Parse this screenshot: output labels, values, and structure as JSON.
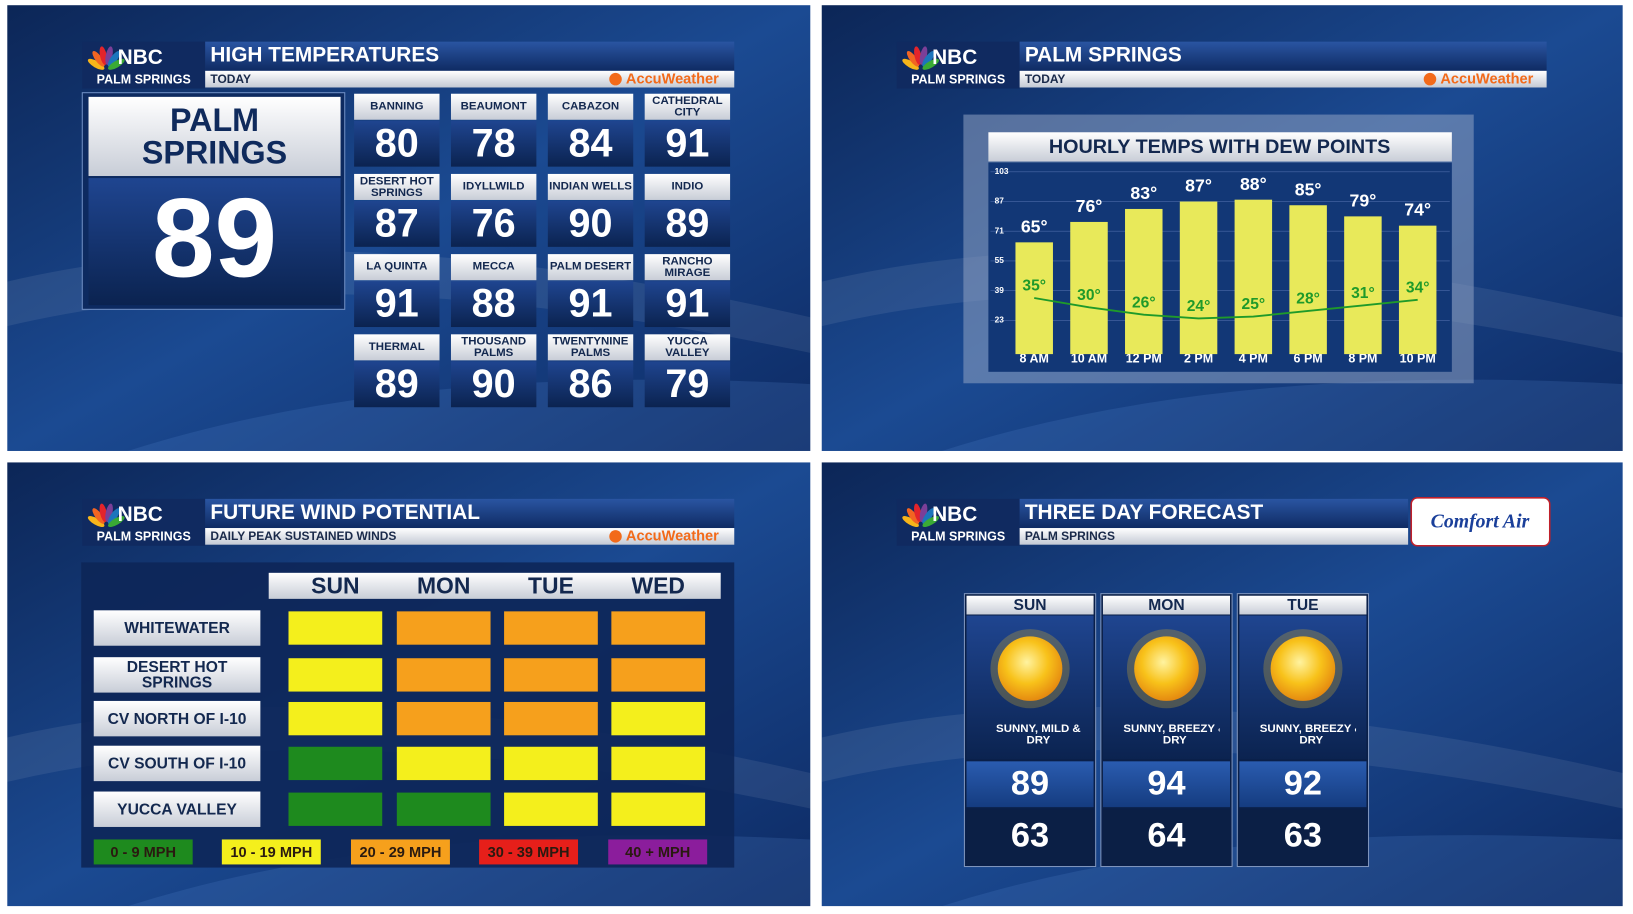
{
  "network": {
    "name": "NBC",
    "station": "PALM SPRINGS"
  },
  "panels": {
    "high_temps": {
      "title": "HIGH TEMPERATURES",
      "subtitle": "TODAY",
      "sponsor": "AccuWeather",
      "featured": {
        "city": "PALM SPRINGS",
        "temp": 89
      },
      "cities": [
        {
          "name": "BANNING",
          "temp": 80
        },
        {
          "name": "BEAUMONT",
          "temp": 78
        },
        {
          "name": "CABAZON",
          "temp": 84
        },
        {
          "name": "CATHEDRAL CITY",
          "temp": 91
        },
        {
          "name": "DESERT HOT SPRINGS",
          "temp": 87
        },
        {
          "name": "IDYLLWILD",
          "temp": 76
        },
        {
          "name": "INDIAN WELLS",
          "temp": 90
        },
        {
          "name": "INDIO",
          "temp": 89
        },
        {
          "name": "LA QUINTA",
          "temp": 91
        },
        {
          "name": "MECCA",
          "temp": 88
        },
        {
          "name": "PALM DESERT",
          "temp": 91
        },
        {
          "name": "RANCHO MIRAGE",
          "temp": 91
        },
        {
          "name": "THERMAL",
          "temp": 89
        },
        {
          "name": "THOUSAND PALMS",
          "temp": 90
        },
        {
          "name": "TWENTYNINE PALMS",
          "temp": 86
        },
        {
          "name": "YUCCA VALLEY",
          "temp": 79
        }
      ]
    },
    "hourly": {
      "title": "PALM SPRINGS",
      "subtitle": "TODAY",
      "sponsor": "AccuWeather"
    },
    "wind": {
      "title": "FUTURE WIND POTENTIAL",
      "subtitle": "DAILY PEAK SUSTAINED WINDS",
      "sponsor": "AccuWeather",
      "days": [
        "SUN",
        "MON",
        "TUE",
        "WED"
      ],
      "rows": [
        {
          "name": "WHITEWATER",
          "levels": [
            1,
            2,
            2,
            2
          ]
        },
        {
          "name": "DESERT HOT SPRINGS",
          "levels": [
            1,
            2,
            2,
            2
          ]
        },
        {
          "name": "CV NORTH OF I-10",
          "levels": [
            1,
            2,
            2,
            1
          ]
        },
        {
          "name": "CV SOUTH OF I-10",
          "levels": [
            0,
            1,
            1,
            1
          ]
        },
        {
          "name": "YUCCA VALLEY",
          "levels": [
            0,
            0,
            1,
            1
          ]
        }
      ],
      "legend": [
        {
          "label": "0 - 9 MPH",
          "color": "#1e8a1e"
        },
        {
          "label": "10 - 19 MPH",
          "color": "#f4ef1c"
        },
        {
          "label": "20 - 29 MPH",
          "color": "#f6a01c"
        },
        {
          "label": "30 - 39 MPH",
          "color": "#e61f1a"
        },
        {
          "label": "40 + MPH",
          "color": "#8b1d9c"
        }
      ]
    },
    "forecast": {
      "title": "THREE DAY FORECAST",
      "subtitle": "PALM SPRINGS",
      "sponsor": "Comfort Air",
      "days": [
        {
          "day": "SUN",
          "desc": "SUNNY, MILD & DRY",
          "high": 89,
          "low": 63
        },
        {
          "day": "MON",
          "desc": "SUNNY, BREEZY & DRY",
          "high": 94,
          "low": 64
        },
        {
          "day": "TUE",
          "desc": "SUNNY, BREEZY & DRY",
          "high": 92,
          "low": 63
        }
      ]
    }
  },
  "chart_data": {
    "type": "bar",
    "title": "HOURLY TEMPS WITH DEW POINTS",
    "categories": [
      "8 AM",
      "10 AM",
      "12 PM",
      "2 PM",
      "4 PM",
      "6 PM",
      "8 PM",
      "10 PM"
    ],
    "series": [
      {
        "type": "bar",
        "color": "#e8e95a",
        "values": [
          65,
          76,
          83,
          87,
          88,
          85,
          79,
          74
        ],
        "value_labels": [
          "65°",
          "76°",
          "83°",
          "87°",
          "88°",
          "85°",
          "79°",
          "74°"
        ]
      },
      {
        "type": "line",
        "color": "#1f9a2a",
        "values": [
          35,
          30,
          26,
          24,
          25,
          28,
          31,
          34
        ],
        "value_labels": [
          "35°",
          "30°",
          "26°",
          "24°",
          "25°",
          "28°",
          "31°",
          "34°"
        ]
      }
    ],
    "ylim": [
      7,
      103
    ],
    "yticks": [
      23,
      39,
      55,
      71,
      87,
      103
    ],
    "grid": true
  }
}
